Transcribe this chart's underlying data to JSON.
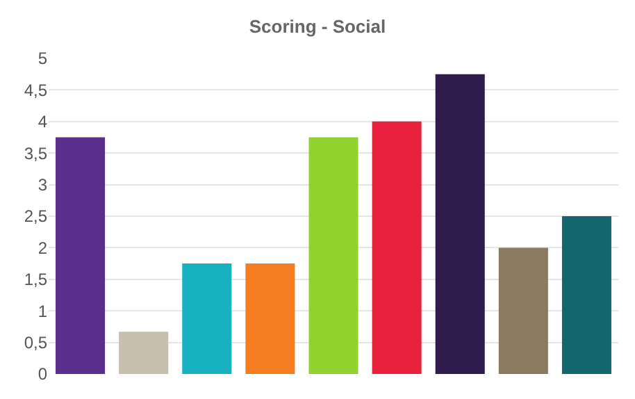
{
  "chart_data": {
    "type": "bar",
    "title": "Scoring - Social",
    "categories": [
      null,
      null,
      null,
      null,
      null,
      null,
      null,
      null,
      null
    ],
    "values": [
      3.75,
      0.67,
      1.75,
      1.75,
      3.75,
      4,
      4.75,
      2,
      2.5
    ],
    "colors": [
      "#5a2e8c",
      "#c9bfae",
      "#17b1c1",
      "#f47d22",
      "#92d22e",
      "#e8213d",
      "#301c4c",
      "#8a7b60",
      "#14666d"
    ],
    "ylim": [
      0,
      5
    ],
    "yticks": [
      0,
      {
        "value": 0.5,
        "label": "0,5"
      },
      1,
      {
        "value": 1.5,
        "label": "1,5"
      },
      2,
      {
        "value": 2.5,
        "label": "2,5"
      },
      3,
      {
        "value": 3.5,
        "label": "3,5"
      },
      4,
      {
        "value": 4.5,
        "label": "4,5"
      },
      5
    ],
    "grid": "y"
  }
}
